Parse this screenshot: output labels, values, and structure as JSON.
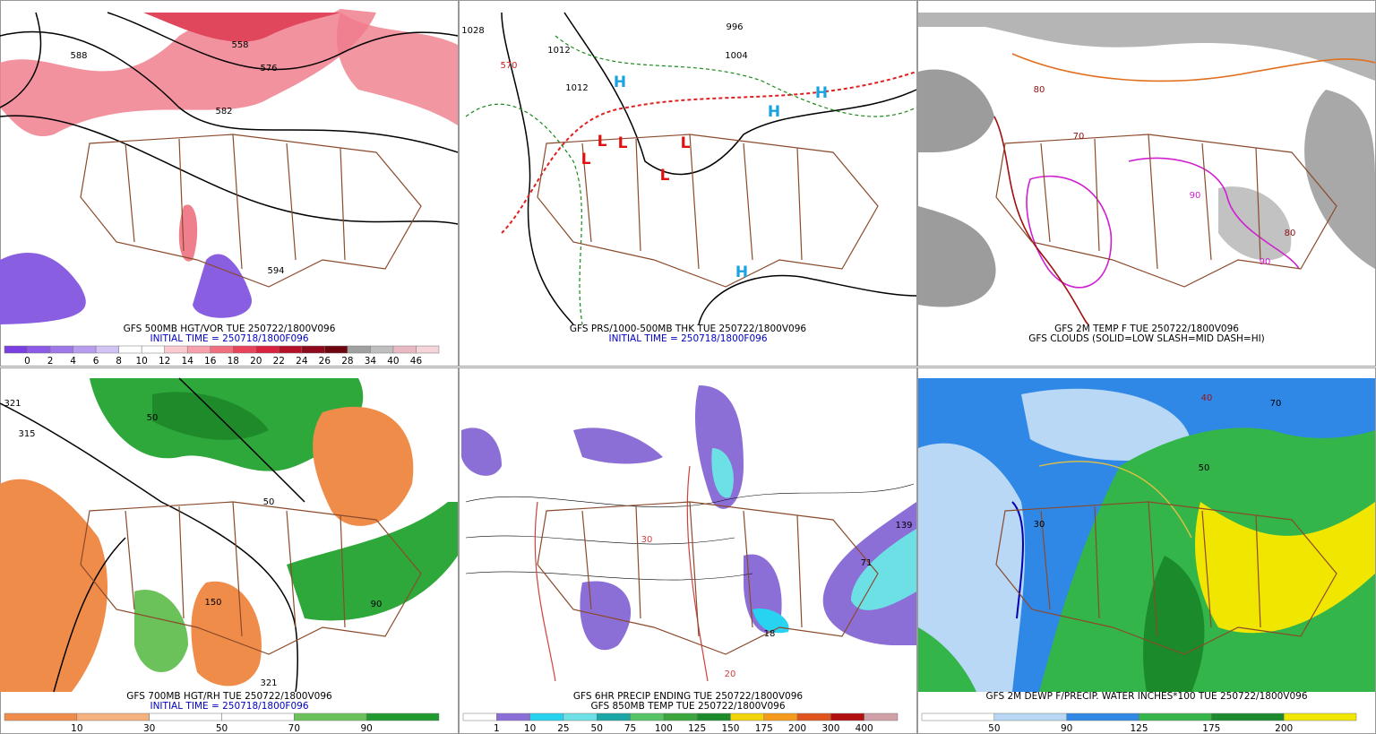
{
  "panels": [
    {
      "captions": [
        "GFS 500MB HGT/VOR TUE 250722/1800V096",
        "INITIAL TIME = 250718/1800F096"
      ],
      "colorbar": {
        "labels": [
          0,
          2,
          4,
          6,
          8,
          10,
          12,
          14,
          16,
          18,
          20,
          22,
          24,
          26,
          28,
          34,
          40,
          46
        ],
        "colors": [
          "#7a3fe0",
          "#8c5ae6",
          "#9f78ea",
          "#b89cf0",
          "#d2c3f5",
          "#ffffff",
          "#ffffff",
          "#fbc9d0",
          "#f7a1ad",
          "#f1707f",
          "#e8435a",
          "#d9223e",
          "#b5102a",
          "#8e0a1c",
          "#6e0610",
          "#a0a0a0",
          "#bfbfbf",
          "#e8b9c3",
          "#f5d4da"
        ]
      },
      "map_labels": [
        "588",
        "558",
        "576",
        "582",
        "594"
      ]
    },
    {
      "captions": [
        "GFS PRS/1000-500MB THK TUE 250722/1800V096",
        "INITIAL TIME = 250718/1800F096"
      ],
      "map_labels": [
        "1028",
        "1012",
        "1012",
        "996",
        "1004",
        "570",
        "H",
        "H",
        "H",
        "H",
        "L",
        "L",
        "L",
        "L",
        "L"
      ]
    },
    {
      "captions": [
        "GFS 2M TEMP F TUE 250722/1800V096",
        "GFS CLOUDS (SOLID=LOW SLASH=MID DASH=HI)"
      ],
      "map_labels": [
        "80",
        "70",
        "90",
        "90",
        "80"
      ]
    },
    {
      "captions": [
        "GFS 700MB HGT/RH TUE 250722/1800V096",
        "INITIAL TIME = 250718/1800F096"
      ],
      "colorbar": {
        "labels": [
          10,
          30,
          50,
          70,
          90
        ],
        "colors": [
          "#f08c4a",
          "#f5b27f",
          "#ffffff",
          "#ffffff",
          "#6cc25a",
          "#1f9a2e"
        ]
      },
      "map_labels": [
        "321",
        "315",
        "50",
        "50",
        "321",
        "150",
        "90"
      ]
    },
    {
      "captions": [
        "GFS 6HR PRECIP ENDING TUE 250722/1800V096",
        "GFS 850MB TEMP TUE 250722/1800V096"
      ],
      "colorbar": {
        "labels": [
          1,
          10,
          25,
          50,
          75,
          100,
          125,
          150,
          175,
          200,
          300,
          400
        ],
        "colors": [
          "#ffffff",
          "#8c6fd6",
          "#27d3f0",
          "#6de0e6",
          "#1aa7a5",
          "#56c465",
          "#3aa53a",
          "#1a8a2a",
          "#f2d40a",
          "#f59a1a",
          "#e0531a",
          "#b01010",
          "#d0a0a8"
        ]
      },
      "map_labels": [
        "71",
        "139",
        "30",
        "18",
        "20"
      ]
    },
    {
      "captions": [
        "GFS 2M DEWP F/PRECIP. WATER INCHES*100 TUE 250722/1800V096"
      ],
      "colorbar": {
        "labels": [
          50,
          90,
          125,
          175,
          200
        ],
        "colors": [
          "#ffffff",
          "#b8d8f5",
          "#2f88e6",
          "#33b54a",
          "#1a8a2a",
          "#f0e600"
        ]
      },
      "map_labels": [
        "30",
        "40",
        "50",
        "70"
      ]
    }
  ]
}
